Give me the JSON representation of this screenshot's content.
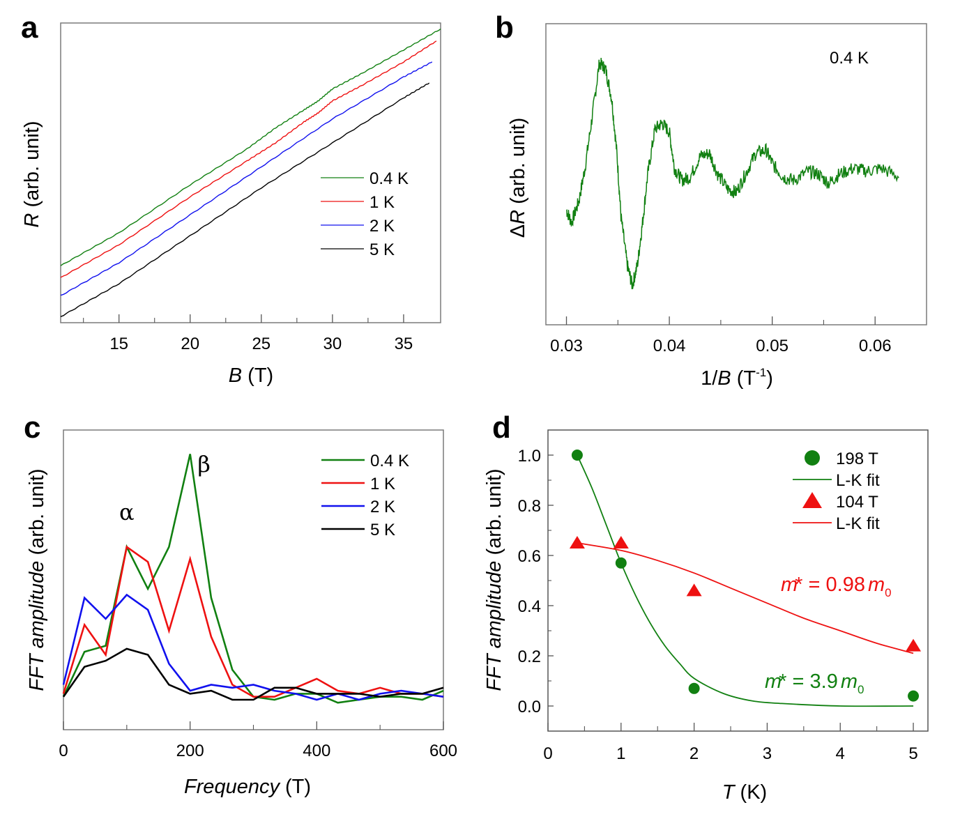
{
  "figure": {
    "colors": {
      "green": "#118011",
      "red": "#ee1111",
      "blue": "#1111ee",
      "black": "#000000"
    }
  },
  "chart_data": [
    {
      "panel": "a",
      "type": "line",
      "title": "",
      "xlabel_italic": "B",
      "xlabel_rest": " (T)",
      "ylabel_italic": "R",
      "ylabel_rest": " (arb. unit)",
      "xlim": [
        10.9,
        37.6
      ],
      "ylim": [
        0,
        1
      ],
      "xticks": [
        15,
        20,
        25,
        30,
        35
      ],
      "xtick_labels": [
        "15",
        "20",
        "25",
        "30",
        "35"
      ],
      "xminor": [
        12.5,
        17.5,
        22.5,
        27.5,
        32.5
      ],
      "yticks": [],
      "legend_position": "center-right",
      "series": [
        {
          "name": "0.4 K",
          "color": "#118011",
          "x": [
            10.9,
            15,
            20,
            24,
            26,
            28,
            29,
            30,
            32,
            35,
            37.6
          ],
          "y": [
            0.19,
            0.3,
            0.46,
            0.58,
            0.65,
            0.71,
            0.74,
            0.78,
            0.83,
            0.91,
            0.98
          ]
        },
        {
          "name": "1 K",
          "color": "#ee1111",
          "x": [
            10.9,
            15,
            20,
            24,
            26,
            28,
            29,
            30,
            32,
            35,
            37.3
          ],
          "y": [
            0.15,
            0.26,
            0.42,
            0.54,
            0.6,
            0.67,
            0.7,
            0.74,
            0.79,
            0.87,
            0.94
          ]
        },
        {
          "name": "2 K",
          "color": "#1111ee",
          "x": [
            10.9,
            15,
            20,
            25,
            30,
            35,
            37.0
          ],
          "y": [
            0.09,
            0.2,
            0.36,
            0.52,
            0.68,
            0.82,
            0.87
          ]
        },
        {
          "name": "5 K",
          "color": "#000000",
          "x": [
            10.9,
            15,
            20,
            25,
            30,
            35,
            36.8
          ],
          "y": [
            0.02,
            0.13,
            0.29,
            0.45,
            0.6,
            0.75,
            0.8
          ]
        }
      ]
    },
    {
      "panel": "b",
      "type": "line",
      "title": "",
      "annotation": "0.4 K",
      "xlabel_pre": "1/",
      "xlabel_italic": "B",
      "xlabel_unit": " (T",
      "xlabel_sup": "-1",
      "xlabel_close": ")",
      "ylabel_pre": "Δ",
      "ylabel_italic": "R",
      "ylabel_rest": " (arb. unit)",
      "xlim": [
        0.028,
        0.065
      ],
      "ylim": [
        0,
        1
      ],
      "xticks": [
        0.03,
        0.04,
        0.05,
        0.06
      ],
      "xtick_labels": [
        "0.03",
        "0.04",
        "0.05",
        "0.06"
      ],
      "xminor": [
        0.035,
        0.045,
        0.055
      ],
      "yticks": [],
      "series": [
        {
          "name": "0.4 K",
          "color": "#118011",
          "x": [
            0.03,
            0.0305,
            0.0312,
            0.0318,
            0.0325,
            0.0332,
            0.0338,
            0.0344,
            0.0349,
            0.0353,
            0.0359,
            0.0364,
            0.0369,
            0.0374,
            0.0379,
            0.0386,
            0.0393,
            0.04,
            0.0405,
            0.0412,
            0.042,
            0.043,
            0.0439,
            0.0447,
            0.0457,
            0.0465,
            0.0474,
            0.0484,
            0.0494,
            0.0501,
            0.0511,
            0.0521,
            0.0535,
            0.0545,
            0.0555,
            0.0565,
            0.0579,
            0.0592,
            0.0606,
            0.0624
          ],
          "y": [
            0.38,
            0.34,
            0.41,
            0.52,
            0.69,
            0.87,
            0.85,
            0.75,
            0.57,
            0.36,
            0.2,
            0.13,
            0.2,
            0.34,
            0.5,
            0.65,
            0.67,
            0.64,
            0.52,
            0.48,
            0.49,
            0.56,
            0.57,
            0.5,
            0.45,
            0.44,
            0.5,
            0.57,
            0.58,
            0.53,
            0.49,
            0.48,
            0.51,
            0.5,
            0.47,
            0.5,
            0.52,
            0.51,
            0.52,
            0.49
          ]
        }
      ]
    },
    {
      "panel": "c",
      "type": "line",
      "title": "",
      "xlabel_italic": "Frequency",
      "xlabel_rest": " (T)",
      "ylabel_italic": "FFT amplitude",
      "ylabel_rest": " (arb. unit)",
      "xlim": [
        0,
        600
      ],
      "ylim": [
        0,
        1
      ],
      "xticks": [
        0,
        200,
        400,
        600
      ],
      "xtick_labels": [
        "0",
        "200",
        "400",
        "600"
      ],
      "xminor": [
        100,
        300,
        500
      ],
      "yticks": [],
      "legend_position": "top-right",
      "annotations": [
        {
          "text": "α",
          "x": 100,
          "y": 0.7
        },
        {
          "text": "β",
          "x": 222,
          "y": 0.86
        }
      ],
      "x": [
        0,
        33.3,
        66.7,
        100,
        133.3,
        166.7,
        200,
        233.3,
        266.7,
        300,
        333.3,
        366.7,
        400,
        433.3,
        466.7,
        500,
        533.3,
        566.7,
        600
      ],
      "series": [
        {
          "name": "0.4 K",
          "color": "#118011",
          "values": [
            0.11,
            0.26,
            0.28,
            0.61,
            0.47,
            0.61,
            0.92,
            0.44,
            0.2,
            0.11,
            0.1,
            0.12,
            0.12,
            0.09,
            0.1,
            0.11,
            0.11,
            0.1,
            0.13
          ]
        },
        {
          "name": "1 K",
          "color": "#ee1111",
          "values": [
            0.12,
            0.35,
            0.25,
            0.61,
            0.56,
            0.33,
            0.57,
            0.31,
            0.15,
            0.11,
            0.11,
            0.14,
            0.17,
            0.13,
            0.12,
            0.14,
            0.12,
            0.12,
            0.11
          ]
        },
        {
          "name": "2 K",
          "color": "#1111ee",
          "values": [
            0.15,
            0.44,
            0.37,
            0.45,
            0.4,
            0.22,
            0.13,
            0.15,
            0.14,
            0.15,
            0.13,
            0.12,
            0.1,
            0.12,
            0.1,
            0.12,
            0.13,
            0.12,
            0.11
          ]
        },
        {
          "name": "5 K",
          "color": "#000000",
          "values": [
            0.11,
            0.21,
            0.23,
            0.27,
            0.25,
            0.15,
            0.12,
            0.13,
            0.1,
            0.1,
            0.14,
            0.14,
            0.12,
            0.12,
            0.12,
            0.11,
            0.12,
            0.12,
            0.14
          ]
        }
      ]
    },
    {
      "panel": "d",
      "type": "scatter",
      "title": "",
      "xlabel_italic": "T",
      "xlabel_rest": " (K)",
      "ylabel_italic": "FFT amplitude",
      "ylabel_rest": " (arb. unit)",
      "xlim": [
        0,
        5.2
      ],
      "ylim": [
        -0.1,
        1.1
      ],
      "xticks": [
        0,
        1,
        2,
        3,
        4,
        5
      ],
      "xtick_labels": [
        "0",
        "1",
        "2",
        "3",
        "4",
        "5"
      ],
      "xminor": [
        0.5,
        1.5,
        2.5,
        3.5,
        4.5
      ],
      "yticks": [
        0.0,
        0.2,
        0.4,
        0.6,
        0.8,
        1.0
      ],
      "ytick_labels": [
        "0.0",
        "0.2",
        "0.4",
        "0.6",
        "0.8",
        "1.0"
      ],
      "yminor": [
        0.1,
        0.3,
        0.5,
        0.7,
        0.9
      ],
      "legend_position": "top-right",
      "series": [
        {
          "name": "198 T",
          "kind": "points",
          "marker": "circle",
          "color": "#118011",
          "x": [
            0.4,
            1,
            2,
            5
          ],
          "y": [
            1.0,
            0.57,
            0.07,
            0.04
          ]
        },
        {
          "name": "L-K fit",
          "kind": "fit",
          "color": "#118011",
          "x": [
            0.4,
            0.6,
            0.8,
            1.0,
            1.2,
            1.4,
            1.6,
            1.8,
            2.0,
            2.4,
            2.8,
            3.2,
            4.0,
            5.0
          ],
          "y": [
            1.0,
            0.87,
            0.72,
            0.57,
            0.44,
            0.33,
            0.24,
            0.17,
            0.11,
            0.05,
            0.02,
            0.01,
            0.0,
            0.0
          ]
        },
        {
          "name": "104 T",
          "kind": "points",
          "marker": "triangle",
          "color": "#ee1111",
          "x": [
            0.4,
            1,
            2,
            5
          ],
          "y": [
            0.65,
            0.65,
            0.46,
            0.24
          ]
        },
        {
          "name": "L-K fit",
          "kind": "fit",
          "color": "#ee1111",
          "x": [
            0.4,
            1.0,
            1.5,
            2.0,
            2.5,
            3.0,
            3.5,
            4.0,
            4.5,
            5.0
          ],
          "y": [
            0.65,
            0.62,
            0.58,
            0.53,
            0.47,
            0.41,
            0.35,
            0.3,
            0.25,
            0.21
          ]
        }
      ],
      "annotations": [
        {
          "id": "red-mass",
          "color": "#ee1111",
          "m": "m",
          "star": "*",
          "eq": " = 0.98",
          "m0": "m",
          "sub": "0"
        },
        {
          "id": "green-mass",
          "color": "#118011",
          "m": "m",
          "star": "*",
          "eq": " = 3.9",
          "m0": "m",
          "sub": "0"
        }
      ]
    }
  ],
  "labels": {
    "a": "a",
    "b": "b",
    "c": "c",
    "d": "d"
  }
}
